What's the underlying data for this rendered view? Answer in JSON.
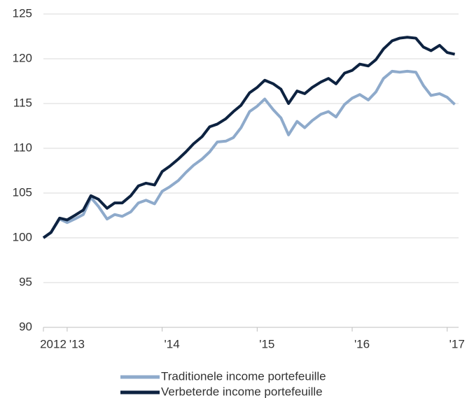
{
  "chart_data": {
    "type": "line",
    "x": [
      2012.75,
      2012.83,
      2012.92,
      2013.0,
      2013.08,
      2013.17,
      2013.25,
      2013.33,
      2013.42,
      2013.5,
      2013.58,
      2013.67,
      2013.75,
      2013.83,
      2013.92,
      2014.0,
      2014.08,
      2014.17,
      2014.25,
      2014.33,
      2014.42,
      2014.5,
      2014.58,
      2014.67,
      2014.75,
      2014.83,
      2014.92,
      2015.0,
      2015.08,
      2015.17,
      2015.25,
      2015.33,
      2015.42,
      2015.5,
      2015.58,
      2015.67,
      2015.75,
      2015.83,
      2015.92,
      2016.0,
      2016.08,
      2016.17,
      2016.25,
      2016.33,
      2016.42,
      2016.5,
      2016.58,
      2016.67,
      2016.75,
      2016.83,
      2016.92,
      2017.0,
      2017.08
    ],
    "series": [
      {
        "name": "Traditionele income portefeuille",
        "color": "#8eaacb",
        "values": [
          100,
          100.6,
          102.1,
          101.7,
          102.1,
          102.6,
          104.5,
          103.5,
          102.1,
          102.6,
          102.4,
          102.9,
          103.9,
          104.2,
          103.8,
          105.2,
          105.7,
          106.4,
          107.3,
          108.1,
          108.8,
          109.6,
          110.7,
          110.8,
          111.2,
          112.3,
          114.1,
          114.7,
          115.5,
          114.3,
          113.4,
          111.5,
          113.0,
          112.3,
          113.1,
          113.8,
          114.1,
          113.5,
          114.9,
          115.6,
          116.0,
          115.4,
          116.3,
          117.8,
          118.6,
          118.5,
          118.6,
          118.5,
          117.0,
          115.9,
          116.1,
          115.7,
          114.9
        ]
      },
      {
        "name": "Verbeterde income portefeuille",
        "color": "#0d2240",
        "values": [
          100,
          100.6,
          102.2,
          102,
          102.5,
          103.1,
          104.7,
          104.3,
          103.3,
          103.9,
          103.9,
          104.7,
          105.8,
          106.1,
          105.9,
          107.4,
          108,
          108.8,
          109.6,
          110.5,
          111.3,
          112.4,
          112.7,
          113.3,
          114.1,
          114.8,
          116.2,
          116.8,
          117.6,
          117.2,
          116.6,
          115,
          116.4,
          116.1,
          116.8,
          117.4,
          117.8,
          117.2,
          118.4,
          118.7,
          119.4,
          119.2,
          119.9,
          121.1,
          122,
          122.3,
          122.4,
          122.3,
          121.3,
          120.9,
          121.5,
          120.7,
          120.5
        ]
      }
    ],
    "xlim": [
      2012.75,
      2017.12
    ],
    "xticks": [
      {
        "value": 2012.75,
        "label": "2012"
      },
      {
        "value": 2013,
        "label": "'13"
      },
      {
        "value": 2014,
        "label": "'14"
      },
      {
        "value": 2015,
        "label": "'15"
      },
      {
        "value": 2016,
        "label": "'16"
      },
      {
        "value": 2017,
        "label": "'17"
      }
    ],
    "ylim": [
      90,
      125
    ],
    "yticks": [
      90,
      95,
      100,
      105,
      110,
      115,
      120,
      125
    ],
    "grid": true,
    "legend": "bottom"
  }
}
